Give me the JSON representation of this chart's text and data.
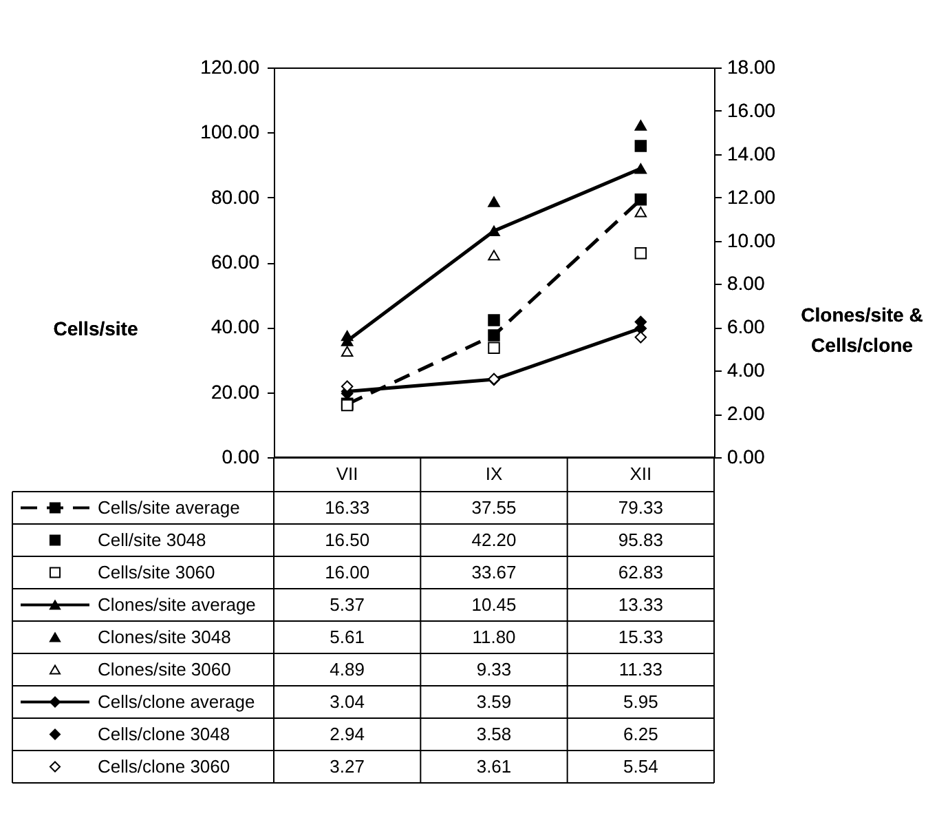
{
  "chart_data": {
    "type": "line",
    "categories": [
      "VII",
      "IX",
      "XII"
    ],
    "ylabel": "Cells/site",
    "y2label": "Clones/site & Cells/clone",
    "ylim": [
      0,
      120
    ],
    "yticks": [
      {
        "value": 0,
        "label": "0.00"
      },
      {
        "value": 20,
        "label": "20.00"
      },
      {
        "value": 40,
        "label": "40.00"
      },
      {
        "value": 60,
        "label": "60.00"
      },
      {
        "value": 80,
        "label": "80.00"
      },
      {
        "value": 100,
        "label": "100.00"
      },
      {
        "value": 120,
        "label": "120.00"
      }
    ],
    "y2lim": [
      0,
      18
    ],
    "y2ticks": [
      {
        "value": 0,
        "label": "0.00"
      },
      {
        "value": 2,
        "label": "2.00"
      },
      {
        "value": 4,
        "label": "4.00"
      },
      {
        "value": 6,
        "label": "6.00"
      },
      {
        "value": 8,
        "label": "8.00"
      },
      {
        "value": 10,
        "label": "10.00"
      },
      {
        "value": 12,
        "label": "12.00"
      },
      {
        "value": 14,
        "label": "14.00"
      },
      {
        "value": 16,
        "label": "16.00"
      },
      {
        "value": 18,
        "label": "18.00"
      }
    ],
    "legend": "bottom",
    "series": [
      {
        "name": "Cells/site average",
        "color": "#000000",
        "marker": "square",
        "line_style": "dashed",
        "values": [
          16.33,
          37.55,
          79.33
        ],
        "value_labels": [
          "16.33",
          "37.55",
          "79.33"
        ]
      },
      {
        "name": "Cell/site 3048",
        "type": "scatter",
        "color": "#000000",
        "marker": "square",
        "values": [
          16.5,
          42.2,
          95.83
        ],
        "value_labels": [
          "16.50",
          "42.20",
          "95.83"
        ]
      },
      {
        "name": "Cells/site 3060",
        "type": "scatter",
        "color": "#ffffff",
        "marker": "square",
        "values": [
          16.0,
          33.67,
          62.83
        ],
        "value_labels": [
          "16.00",
          "33.67",
          "62.83"
        ]
      },
      {
        "name": "Clones/site average",
        "axis": "y2",
        "color": "#000000",
        "marker": "triangle",
        "line_style": "solid",
        "values": [
          5.37,
          10.45,
          13.33
        ],
        "value_labels": [
          "5.37",
          "10.45",
          "13.33"
        ]
      },
      {
        "name": "Clones/site 3048",
        "type": "scatter",
        "axis": "y2",
        "color": "#000000",
        "marker": "triangle",
        "values": [
          5.61,
          11.8,
          15.33
        ],
        "value_labels": [
          "5.61",
          "11.80",
          "15.33"
        ]
      },
      {
        "name": "Clones/site 3060",
        "type": "scatter",
        "axis": "y2",
        "color": "#ffffff",
        "marker": "triangle",
        "values": [
          4.89,
          9.33,
          11.33
        ],
        "value_labels": [
          "4.89",
          "9.33",
          "11.33"
        ]
      },
      {
        "name": "Cells/clone average",
        "axis": "y2",
        "color": "#000000",
        "marker": "diamond",
        "line_style": "solid",
        "values": [
          3.04,
          3.59,
          5.95
        ],
        "value_labels": [
          "3.04",
          "3.59",
          "5.95"
        ]
      },
      {
        "name": "Cells/clone 3048",
        "type": "scatter",
        "axis": "y2",
        "color": "#000000",
        "marker": "diamond",
        "values": [
          2.94,
          3.58,
          6.25
        ],
        "value_labels": [
          "2.94",
          "3.58",
          "6.25"
        ]
      },
      {
        "name": "Cells/clone 3060",
        "type": "scatter",
        "axis": "y2",
        "color": "#ffffff",
        "marker": "diamond",
        "values": [
          3.27,
          3.61,
          5.54
        ],
        "value_labels": [
          "3.27",
          "3.61",
          "5.54"
        ]
      }
    ]
  }
}
